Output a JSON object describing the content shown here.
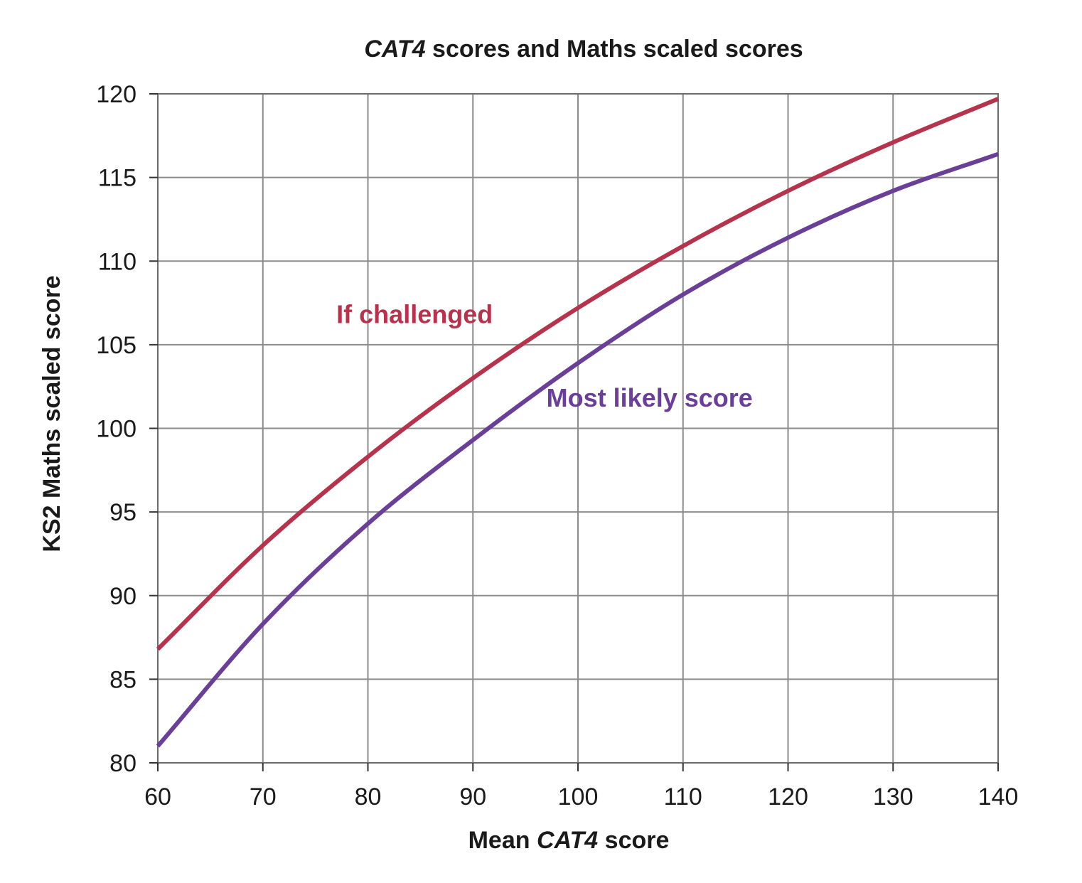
{
  "chart_data": {
    "type": "line",
    "title_italic": "CAT4",
    "title_rest": " scores and Maths scaled scores",
    "xlabel_prefix": "Mean ",
    "xlabel_italic": "CAT4",
    "xlabel_suffix": " score",
    "ylabel": "KS2 Maths scaled score",
    "xlim": [
      60,
      140
    ],
    "ylim": [
      80,
      120
    ],
    "xticks": [
      60,
      70,
      80,
      90,
      100,
      110,
      120,
      130,
      140
    ],
    "yticks": [
      80,
      85,
      90,
      95,
      100,
      105,
      110,
      115,
      120
    ],
    "grid": true,
    "x": [
      60,
      70,
      80,
      90,
      100,
      110,
      120,
      130,
      140
    ],
    "series": [
      {
        "name": "If challenged",
        "color": "#b5344d",
        "values": [
          86.8,
          93.0,
          98.3,
          103.0,
          107.2,
          110.9,
          114.2,
          117.1,
          119.7
        ]
      },
      {
        "name": "Most likely score",
        "color": "#6a3f96",
        "values": [
          81.0,
          88.3,
          94.3,
          99.3,
          103.9,
          108.0,
          111.4,
          114.2,
          116.4
        ]
      }
    ]
  }
}
